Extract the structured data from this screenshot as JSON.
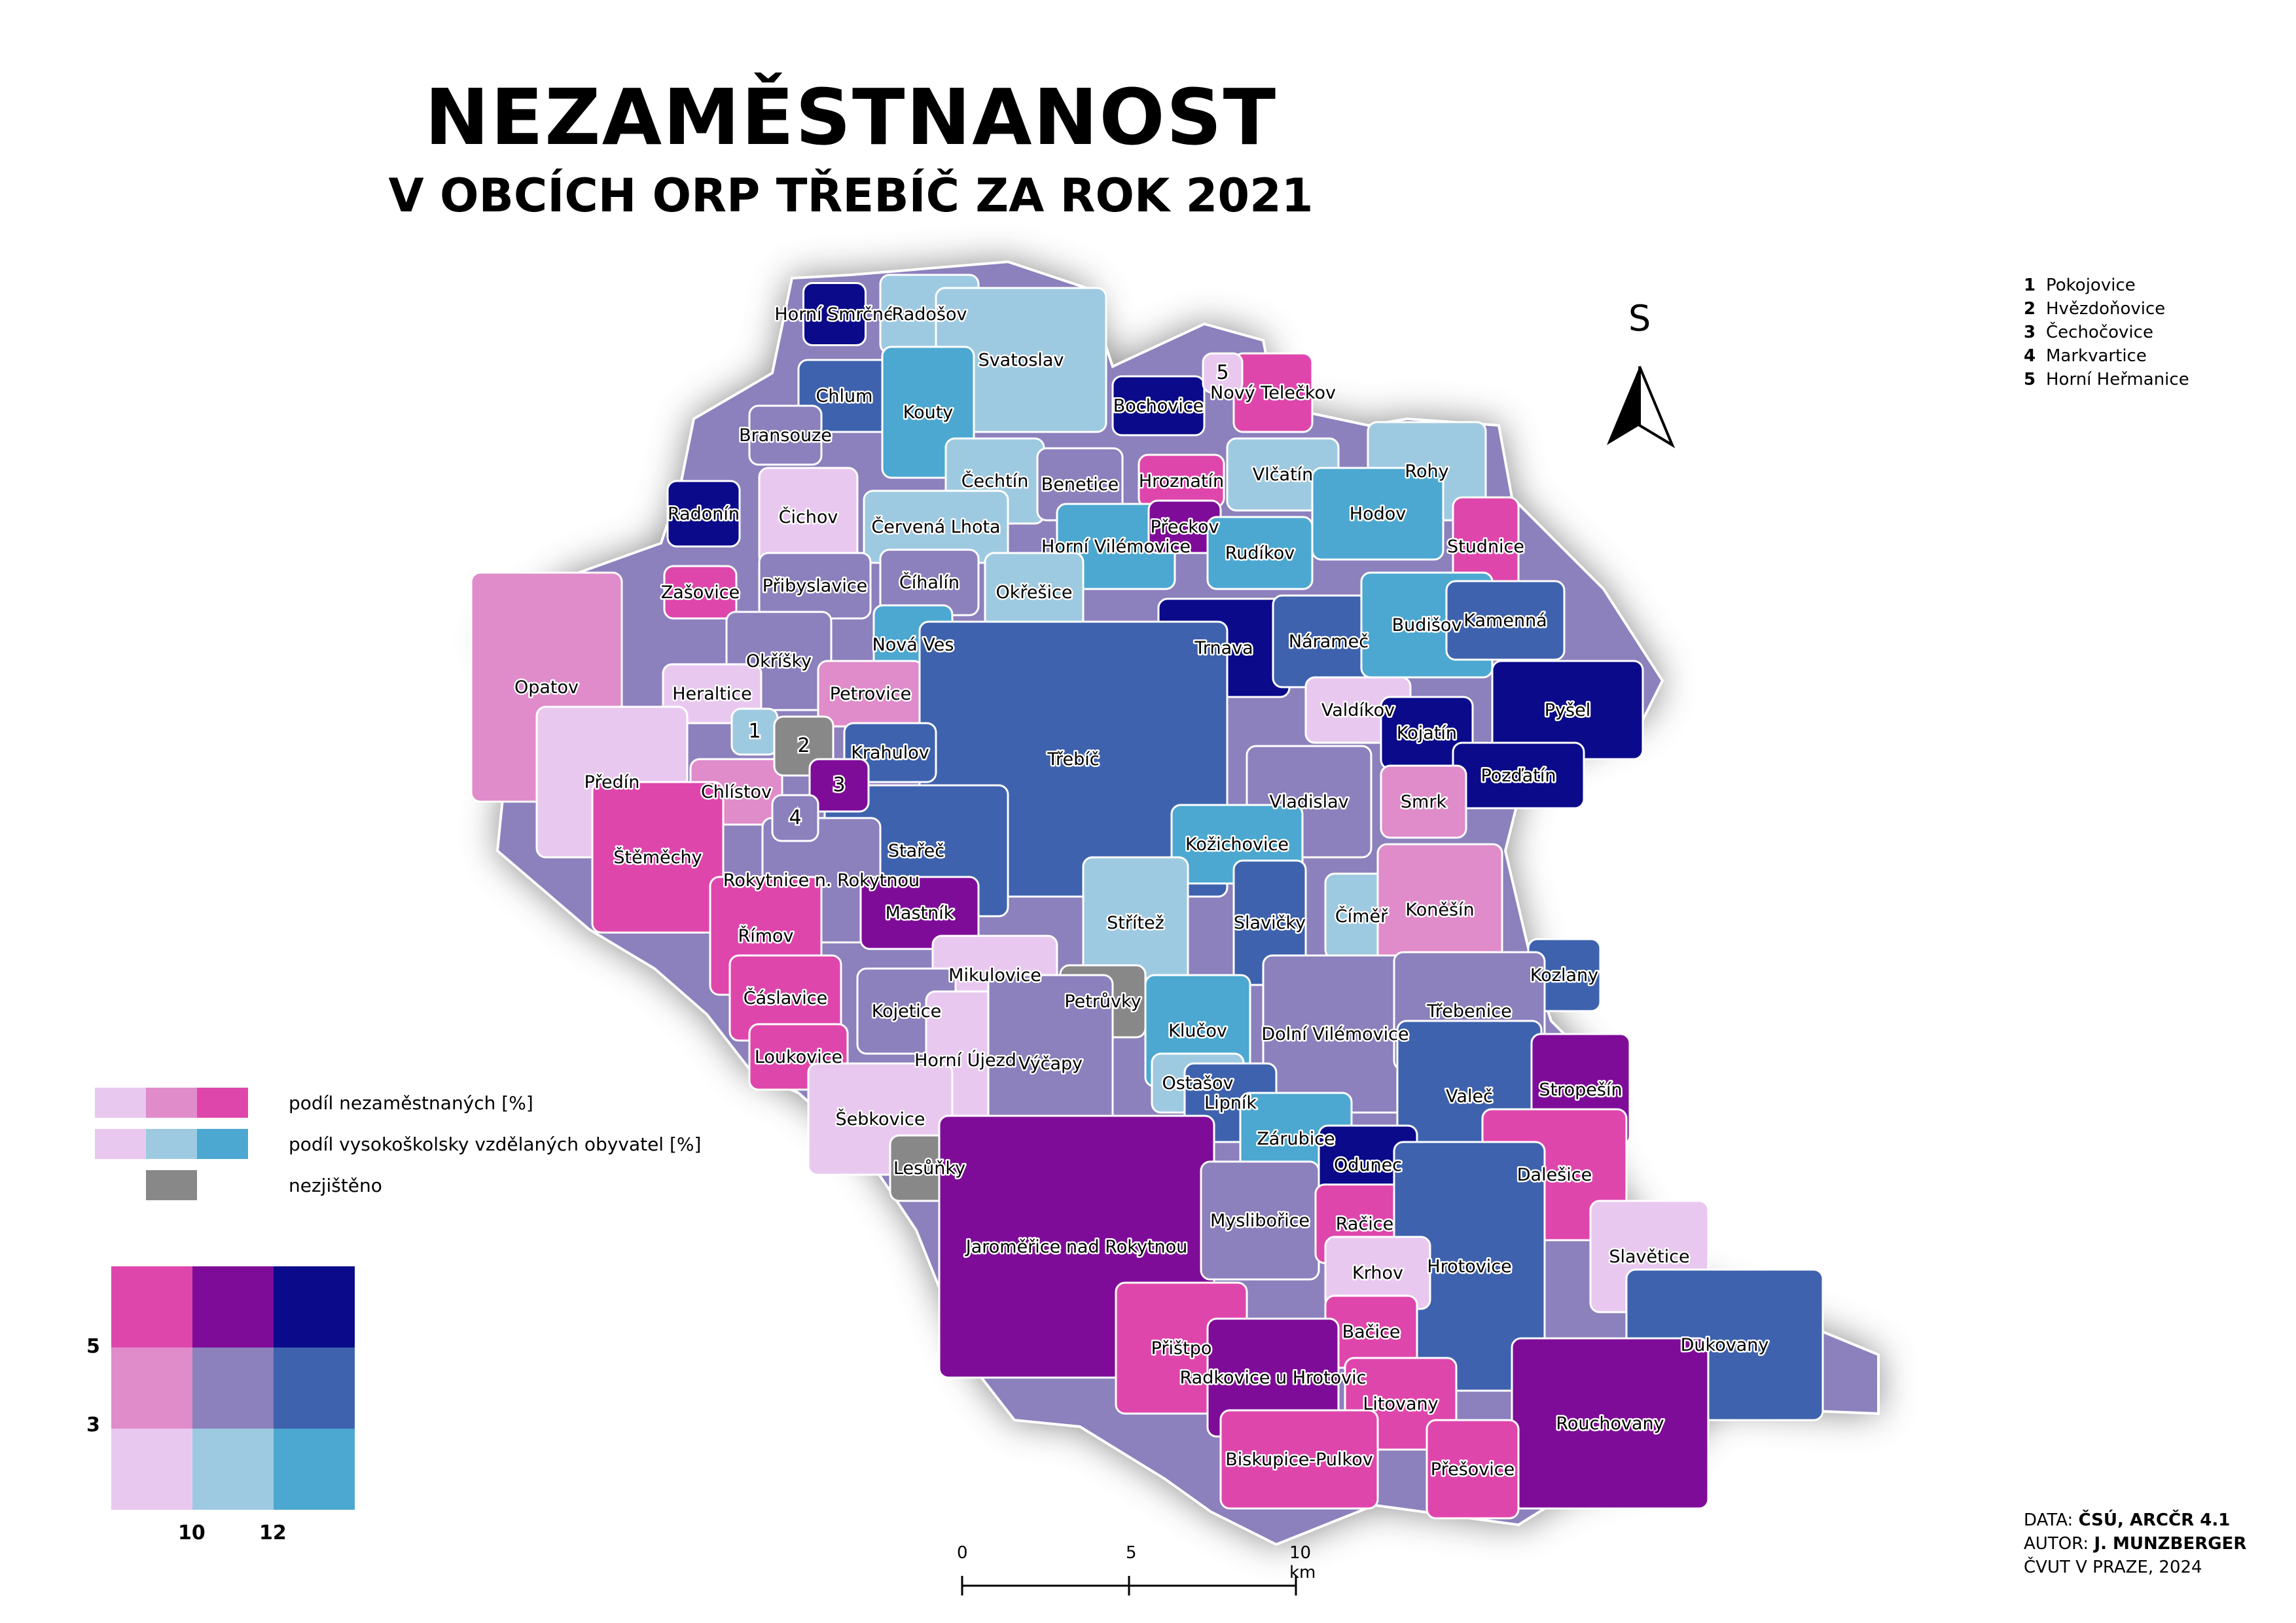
{
  "title": "NEZAMĚSTNANOST",
  "subtitle": "V OBCÍCH ORP TŘEBÍČ ZA ROK 2021",
  "colors": {
    "c11": "#e9c8f0",
    "c21": "#e08bca",
    "c31": "#df46ac",
    "c12": "#9ecae1",
    "c22": "#8c80bd",
    "c32": "#7f0c99",
    "c13": "#4ca8d0",
    "c23": "#3e62ad",
    "c33": "#0a0a8a",
    "nodata": "#888888"
  },
  "legend": {
    "unemployment_label": "podíl nezaměstnaných [%]",
    "education_label": "podíl vysokoškolsky vzdělaných obyvatel [%]",
    "nodata_label": "nezjištěno",
    "y_breaks": [
      "5",
      "3"
    ],
    "x_breaks": [
      "10",
      "12"
    ]
  },
  "north_arrow_label": "S",
  "scale_bar": {
    "ticks": [
      "0",
      "5",
      "10 km"
    ]
  },
  "footnotes": [
    {
      "num": "1",
      "name": "Pokojovice"
    },
    {
      "num": "2",
      "name": "Hvězdoňovice"
    },
    {
      "num": "3",
      "name": "Čechočovice"
    },
    {
      "num": "4",
      "name": "Markvartice"
    },
    {
      "num": "5",
      "name": "Horní Heřmanice"
    }
  ],
  "credits": {
    "data_prefix": "DATA: ",
    "data_value": "ČSÚ, ARCČR 4.1",
    "author_prefix": "AUTOR: ",
    "author_value": "J. MUNZBERGER",
    "institution": "ČVUT V PRAZE, 2024"
  },
  "municipalities": [
    {
      "label": "Horní Smrčné",
      "cls": "c33"
    },
    {
      "label": "Radošov",
      "cls": "c12"
    },
    {
      "label": "Svatoslav",
      "cls": "c12"
    },
    {
      "label": "Chlum",
      "cls": "c23"
    },
    {
      "label": "Kouty",
      "cls": "c13"
    },
    {
      "label": "Bochovice",
      "cls": "c33"
    },
    {
      "label": "Nový Telečkov",
      "cls": "c31"
    },
    {
      "label": "Bransouze",
      "cls": "c22"
    },
    {
      "label": "Čechtín",
      "cls": "c12"
    },
    {
      "label": "Benetice",
      "cls": "c22"
    },
    {
      "label": "Hroznatín",
      "cls": "c31"
    },
    {
      "label": "Vlčatín",
      "cls": "c12"
    },
    {
      "label": "Rohy",
      "cls": "c12"
    },
    {
      "label": "Radonín",
      "cls": "c33"
    },
    {
      "label": "Čichov",
      "cls": "c11"
    },
    {
      "label": "Červená Lhota",
      "cls": "c12"
    },
    {
      "label": "Horní Vilémovice",
      "cls": "c13"
    },
    {
      "label": "Přeckov",
      "cls": "c32"
    },
    {
      "label": "Hodov",
      "cls": "c13"
    },
    {
      "label": "Studnice",
      "cls": "c31"
    },
    {
      "label": "Rudíkov",
      "cls": "c13"
    },
    {
      "label": "Zašovice",
      "cls": "c31"
    },
    {
      "label": "Přibyslavice",
      "cls": "c22"
    },
    {
      "label": "Číhalín",
      "cls": "c22"
    },
    {
      "label": "Okřešice",
      "cls": "c12"
    },
    {
      "label": "Trnava",
      "cls": "c33"
    },
    {
      "label": "Náramеč",
      "cls": "c23"
    },
    {
      "label": "Budišov",
      "cls": "c13"
    },
    {
      "label": "Kamenná",
      "cls": "c23"
    },
    {
      "label": "Okříšky",
      "cls": "c22"
    },
    {
      "label": "Nová Ves",
      "cls": "c13"
    },
    {
      "label": "Opatov",
      "cls": "c21"
    },
    {
      "label": "Heraltice",
      "cls": "c11"
    },
    {
      "label": "Petrovice",
      "cls": "c21"
    },
    {
      "label": "Valdíkov",
      "cls": "c11"
    },
    {
      "label": "Pyšel",
      "cls": "c33"
    },
    {
      "label": "Kojatín",
      "cls": "c33"
    },
    {
      "label": "Třebíč",
      "cls": "c23"
    },
    {
      "label": "Krahulov",
      "cls": "c23"
    },
    {
      "label": "Pozďatín",
      "cls": "c33"
    },
    {
      "label": "Předín",
      "cls": "c11"
    },
    {
      "label": "Chlístov",
      "cls": "c21"
    },
    {
      "label": "Vladislav",
      "cls": "c22"
    },
    {
      "label": "Smrk",
      "cls": "c21"
    },
    {
      "label": "Štěměchy",
      "cls": "c31"
    },
    {
      "label": "Stařeč",
      "cls": "c23"
    },
    {
      "label": "Kožichovice",
      "cls": "c13"
    },
    {
      "label": "Rokytnice n. Rokytnou",
      "cls": "c22"
    },
    {
      "label": "Mastník",
      "cls": "c32"
    },
    {
      "label": "Střítež",
      "cls": "c12"
    },
    {
      "label": "Slavičky",
      "cls": "c23"
    },
    {
      "label": "Číměř",
      "cls": "c12"
    },
    {
      "label": "Koněšín",
      "cls": "c21"
    },
    {
      "label": "Římov",
      "cls": "c31"
    },
    {
      "label": "Mikulovice",
      "cls": "c11"
    },
    {
      "label": "Petrůvky",
      "cls": "nodata"
    },
    {
      "label": "Klučov",
      "cls": "c13"
    },
    {
      "label": "Kozlany",
      "cls": "c23"
    },
    {
      "label": "Čáslavice",
      "cls": "c31"
    },
    {
      "label": "Kojetice",
      "cls": "c22"
    },
    {
      "label": "Horní Újezd",
      "cls": "c11"
    },
    {
      "label": "Ostašov",
      "cls": "c12"
    },
    {
      "label": "Dolní Vilémovice",
      "cls": "c22"
    },
    {
      "label": "Třebenice",
      "cls": "c22"
    },
    {
      "label": "Loukovice",
      "cls": "c31"
    },
    {
      "label": "Výčapy",
      "cls": "c22"
    },
    {
      "label": "Lipník",
      "cls": "c23"
    },
    {
      "label": "Valeč",
      "cls": "c23"
    },
    {
      "label": "Stropešín",
      "cls": "c32"
    },
    {
      "label": "Šebkovice",
      "cls": "c11"
    },
    {
      "label": "Zárubice",
      "cls": "c13"
    },
    {
      "label": "Odunec",
      "cls": "c33"
    },
    {
      "label": "Dalešice",
      "cls": "c31"
    },
    {
      "label": "Lesůňky",
      "cls": "nodata"
    },
    {
      "label": "Jaroměřice nad Rokytnou",
      "cls": "c32"
    },
    {
      "label": "Myslibořice",
      "cls": "c22"
    },
    {
      "label": "Račice",
      "cls": "c31"
    },
    {
      "label": "Hrotovice",
      "cls": "c23"
    },
    {
      "label": "Slavětice",
      "cls": "c11"
    },
    {
      "label": "Krhov",
      "cls": "c11"
    },
    {
      "label": "Přištpo",
      "cls": "c31"
    },
    {
      "label": "Bačice",
      "cls": "c31"
    },
    {
      "label": "Dukovany",
      "cls": "c23"
    },
    {
      "label": "Radkovice u Hrotovic",
      "cls": "c32"
    },
    {
      "label": "Litovany",
      "cls": "c31"
    },
    {
      "label": "Rouchovany",
      "cls": "c32"
    },
    {
      "label": "Biskupice-Pulkov",
      "cls": "c31"
    },
    {
      "label": "Přešovice",
      "cls": "c31"
    },
    {
      "label": "1",
      "cls": "c12"
    },
    {
      "label": "2",
      "cls": "nodata"
    },
    {
      "label": "3",
      "cls": "c32"
    },
    {
      "label": "4",
      "cls": "c22"
    },
    {
      "label": "5",
      "cls": "c11"
    }
  ]
}
